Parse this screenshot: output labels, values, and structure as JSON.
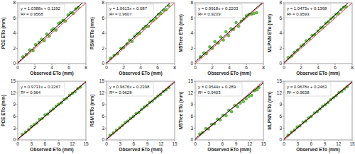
{
  "chart_data": [
    {
      "type": "scatter",
      "y_label": "PCE ETo (mm)",
      "x_label": "Observed ETo (mm)",
      "annotations": [
        "y = 1.0388x + 0.1192",
        "R² = 0.9568"
      ],
      "fit": {
        "slope": 1.0388,
        "intercept": 0.1192,
        "color": "#000000"
      },
      "color": "#66cc33",
      "xlim": [
        0,
        8
      ],
      "ylim": [
        0,
        8
      ],
      "xticks": [
        0,
        2,
        4,
        6,
        8
      ],
      "yticks": [
        0,
        2,
        4,
        6,
        8
      ],
      "x": [
        0.6,
        1.0,
        1.4,
        1.8,
        2.1,
        2.5,
        2.8,
        3.1,
        3.4,
        3.7,
        4.0,
        4.2,
        4.5,
        4.8,
        5.0,
        5.3,
        5.6,
        5.9,
        6.2,
        6.5,
        6.8,
        7.1
      ],
      "values": [
        0.9,
        1.2,
        1.8,
        1.7,
        2.5,
        2.8,
        3.2,
        3.0,
        3.9,
        3.6,
        4.4,
        4.6,
        4.4,
        5.3,
        5.4,
        5.7,
        5.6,
        6.4,
        6.7,
        6.6,
        7.2,
        7.4
      ]
    },
    {
      "type": "scatter",
      "y_label": "RSM ETo (mm)",
      "x_label": "Observed ETo (mm)",
      "annotations": [
        "y = 1.0613x + 0.087",
        "R² = 0.9607"
      ],
      "fit": {
        "slope": 1.0613,
        "intercept": 0.087,
        "color": "#000000"
      },
      "color": "#66cc33",
      "xlim": [
        0,
        8
      ],
      "ylim": [
        0,
        8
      ],
      "xticks": [
        0,
        2,
        4,
        6,
        8
      ],
      "yticks": [
        0,
        2,
        4,
        6,
        8
      ],
      "x": [
        0.5,
        0.9,
        1.3,
        1.7,
        2.0,
        2.4,
        2.7,
        3.0,
        3.3,
        3.6,
        3.9,
        4.3,
        4.6,
        4.9,
        5.2,
        5.5,
        5.8,
        6.1,
        6.4,
        6.7,
        7.0,
        7.3
      ],
      "values": [
        0.7,
        1.1,
        1.3,
        2.0,
        2.1,
        2.6,
        3.1,
        2.9,
        3.6,
        3.9,
        4.0,
        4.6,
        4.9,
        4.9,
        5.6,
        5.7,
        6.0,
        6.5,
        6.6,
        7.0,
        7.1,
        7.6
      ]
    },
    {
      "type": "scatter",
      "y_label": "M5Tree ETo (mm)",
      "x_label": "Observed ETo (mm)",
      "annotations": [
        "y = 0.9918x + 0.2203",
        "R² = 0.9239"
      ],
      "fit": {
        "slope": 0.9918,
        "intercept": 0.2203,
        "color": "#000000"
      },
      "color": "#66cc33",
      "xlim": [
        0,
        8
      ],
      "ylim": [
        0,
        8
      ],
      "xticks": [
        0,
        2,
        4,
        6,
        8
      ],
      "yticks": [
        0,
        2,
        4,
        6,
        8
      ],
      "x": [
        0.6,
        1.0,
        1.3,
        1.7,
        2.0,
        2.3,
        2.7,
        3.0,
        3.3,
        3.6,
        3.9,
        4.2,
        4.5,
        4.8,
        5.1,
        5.4,
        5.7,
        6.0,
        6.3,
        6.6,
        6.9,
        7.2
      ],
      "values": [
        0.9,
        1.4,
        1.3,
        2.2,
        2.0,
        2.9,
        2.7,
        3.5,
        3.1,
        4.2,
        3.7,
        4.6,
        4.5,
        5.4,
        4.9,
        5.6,
        5.9,
        6.3,
        6.5,
        6.5,
        6.6,
        6.7
      ]
    },
    {
      "type": "scatter",
      "y_label": "MLPNN ETo (mm)",
      "x_label": "Observed ETo (mm)",
      "annotations": [
        "y = 1.0473x + 0.1368",
        "R² = 0.9593"
      ],
      "fit": {
        "slope": 1.0473,
        "intercept": 0.1368,
        "color": "#000000"
      },
      "color": "#66cc33",
      "xlim": [
        0,
        8
      ],
      "ylim": [
        0,
        8
      ],
      "xticks": [
        0,
        2,
        4,
        6,
        8
      ],
      "yticks": [
        0,
        2,
        4,
        6,
        8
      ],
      "x": [
        0.5,
        0.9,
        1.2,
        1.6,
        2.0,
        2.3,
        2.6,
        3.0,
        3.3,
        3.6,
        4.0,
        4.3,
        4.6,
        4.9,
        5.2,
        5.5,
        5.8,
        6.1,
        6.4,
        6.7,
        7.0,
        7.3
      ],
      "values": [
        0.8,
        1.0,
        1.5,
        1.8,
        2.3,
        2.5,
        3.0,
        3.2,
        3.7,
        3.8,
        4.3,
        4.7,
        4.8,
        5.3,
        5.5,
        5.9,
        6.1,
        6.5,
        6.6,
        7.1,
        7.4,
        7.5
      ]
    },
    {
      "type": "scatter",
      "y_label": "PCE ETo (mm)",
      "x_label": "Observed ETo (mm)",
      "annotations": [
        "y = 0.9731x + 0.2267",
        "R² = 0.964"
      ],
      "fit": {
        "slope": 0.9731,
        "intercept": 0.2267,
        "color": "#000000"
      },
      "color": "#66cc33",
      "xlim": [
        0,
        15
      ],
      "ylim": [
        0,
        15
      ],
      "xticks": [
        0,
        3,
        6,
        9,
        12,
        15
      ],
      "yticks": [
        0,
        3,
        6,
        9,
        12,
        15
      ],
      "x": [
        1.0,
        1.7,
        2.4,
        3.0,
        3.6,
        4.2,
        4.8,
        5.4,
        6.0,
        6.6,
        7.2,
        7.8,
        8.4,
        9.0,
        9.6,
        10.2,
        10.8,
        11.4,
        12.0,
        12.6,
        13.2,
        13.8
      ],
      "values": [
        1.4,
        2.0,
        2.6,
        3.4,
        3.9,
        4.3,
        5.2,
        5.5,
        6.4,
        6.6,
        7.4,
        7.9,
        8.6,
        9.1,
        9.5,
        10.3,
        10.7,
        11.4,
        11.9,
        12.3,
        13.1,
        13.5
      ]
    },
    {
      "type": "scatter",
      "y_label": "RSM ETo (mm)",
      "x_label": "Observed ETo (mm)",
      "annotations": [
        "y = 0.9676x + 0.2398",
        "R² = 0.9628"
      ],
      "fit": {
        "slope": 0.9676,
        "intercept": 0.2398,
        "color": "#000000"
      },
      "color": "#66cc33",
      "xlim": [
        0,
        15
      ],
      "ylim": [
        0,
        15
      ],
      "xticks": [
        0,
        3,
        6,
        9,
        12,
        15
      ],
      "yticks": [
        0,
        3,
        6,
        9,
        12,
        15
      ],
      "x": [
        0.8,
        1.5,
        2.2,
        2.9,
        3.5,
        4.1,
        4.7,
        5.3,
        5.9,
        6.5,
        7.1,
        7.7,
        8.3,
        8.9,
        9.5,
        10.1,
        10.7,
        11.3,
        11.9,
        12.5,
        13.1,
        13.7
      ],
      "values": [
        1.2,
        1.8,
        2.5,
        3.1,
        3.7,
        4.4,
        4.8,
        5.5,
        6.0,
        6.7,
        7.0,
        7.8,
        8.4,
        8.8,
        9.6,
        9.9,
        10.6,
        11.2,
        11.6,
        12.4,
        12.8,
        13.4
      ]
    },
    {
      "type": "scatter",
      "y_label": "M5Tree ETo (mm)",
      "x_label": "Observed ETo (mm)",
      "annotations": [
        "y = 0.9544x + 0.289",
        "R² = 0.9403"
      ],
      "fit": {
        "slope": 0.9544,
        "intercept": 0.289,
        "color": "#000000"
      },
      "color": "#66cc33",
      "xlim": [
        0,
        15
      ],
      "ylim": [
        0,
        15
      ],
      "xticks": [
        0,
        3,
        6,
        9,
        12,
        15
      ],
      "yticks": [
        0,
        3,
        6,
        9,
        12,
        15
      ],
      "x": [
        1.0,
        1.6,
        2.3,
        2.9,
        3.6,
        4.2,
        4.9,
        5.5,
        6.1,
        6.8,
        7.4,
        8.0,
        8.7,
        9.3,
        9.9,
        10.6,
        11.2,
        11.8,
        12.4,
        13.0,
        13.6,
        14.0
      ],
      "values": [
        1.5,
        1.9,
        2.9,
        2.8,
        4.0,
        4.1,
        5.3,
        5.1,
        6.3,
        6.2,
        7.6,
        7.2,
        8.8,
        8.5,
        9.4,
        9.8,
        10.5,
        11.1,
        11.4,
        12.6,
        12.8,
        13.4
      ]
    },
    {
      "type": "scatter",
      "y_label": "MLPNN ETo (mm)",
      "x_label": "Observed ETo (mm)",
      "annotations": [
        "y = 0.9678x + 0.2463",
        "R² = 0.9638"
      ],
      "fit": {
        "slope": 0.9678,
        "intercept": 0.2463,
        "color": "#000000"
      },
      "color": "#66cc33",
      "xlim": [
        0,
        15
      ],
      "ylim": [
        0,
        15
      ],
      "xticks": [
        0,
        3,
        6,
        9,
        12,
        15
      ],
      "yticks": [
        0,
        3,
        6,
        9,
        12,
        15
      ],
      "x": [
        0.9,
        1.6,
        2.3,
        2.9,
        3.5,
        4.2,
        4.8,
        5.4,
        6.0,
        6.7,
        7.3,
        7.9,
        8.5,
        9.1,
        9.7,
        10.3,
        10.9,
        11.5,
        12.1,
        12.7,
        13.3,
        13.9
      ],
      "values": [
        1.2,
        2.0,
        2.5,
        3.3,
        3.6,
        4.5,
        4.8,
        5.6,
        6.0,
        6.9,
        7.2,
        7.9,
        8.6,
        9.0,
        9.6,
        10.3,
        10.8,
        11.3,
        12.1,
        12.4,
        13.0,
        13.6
      ]
    }
  ]
}
